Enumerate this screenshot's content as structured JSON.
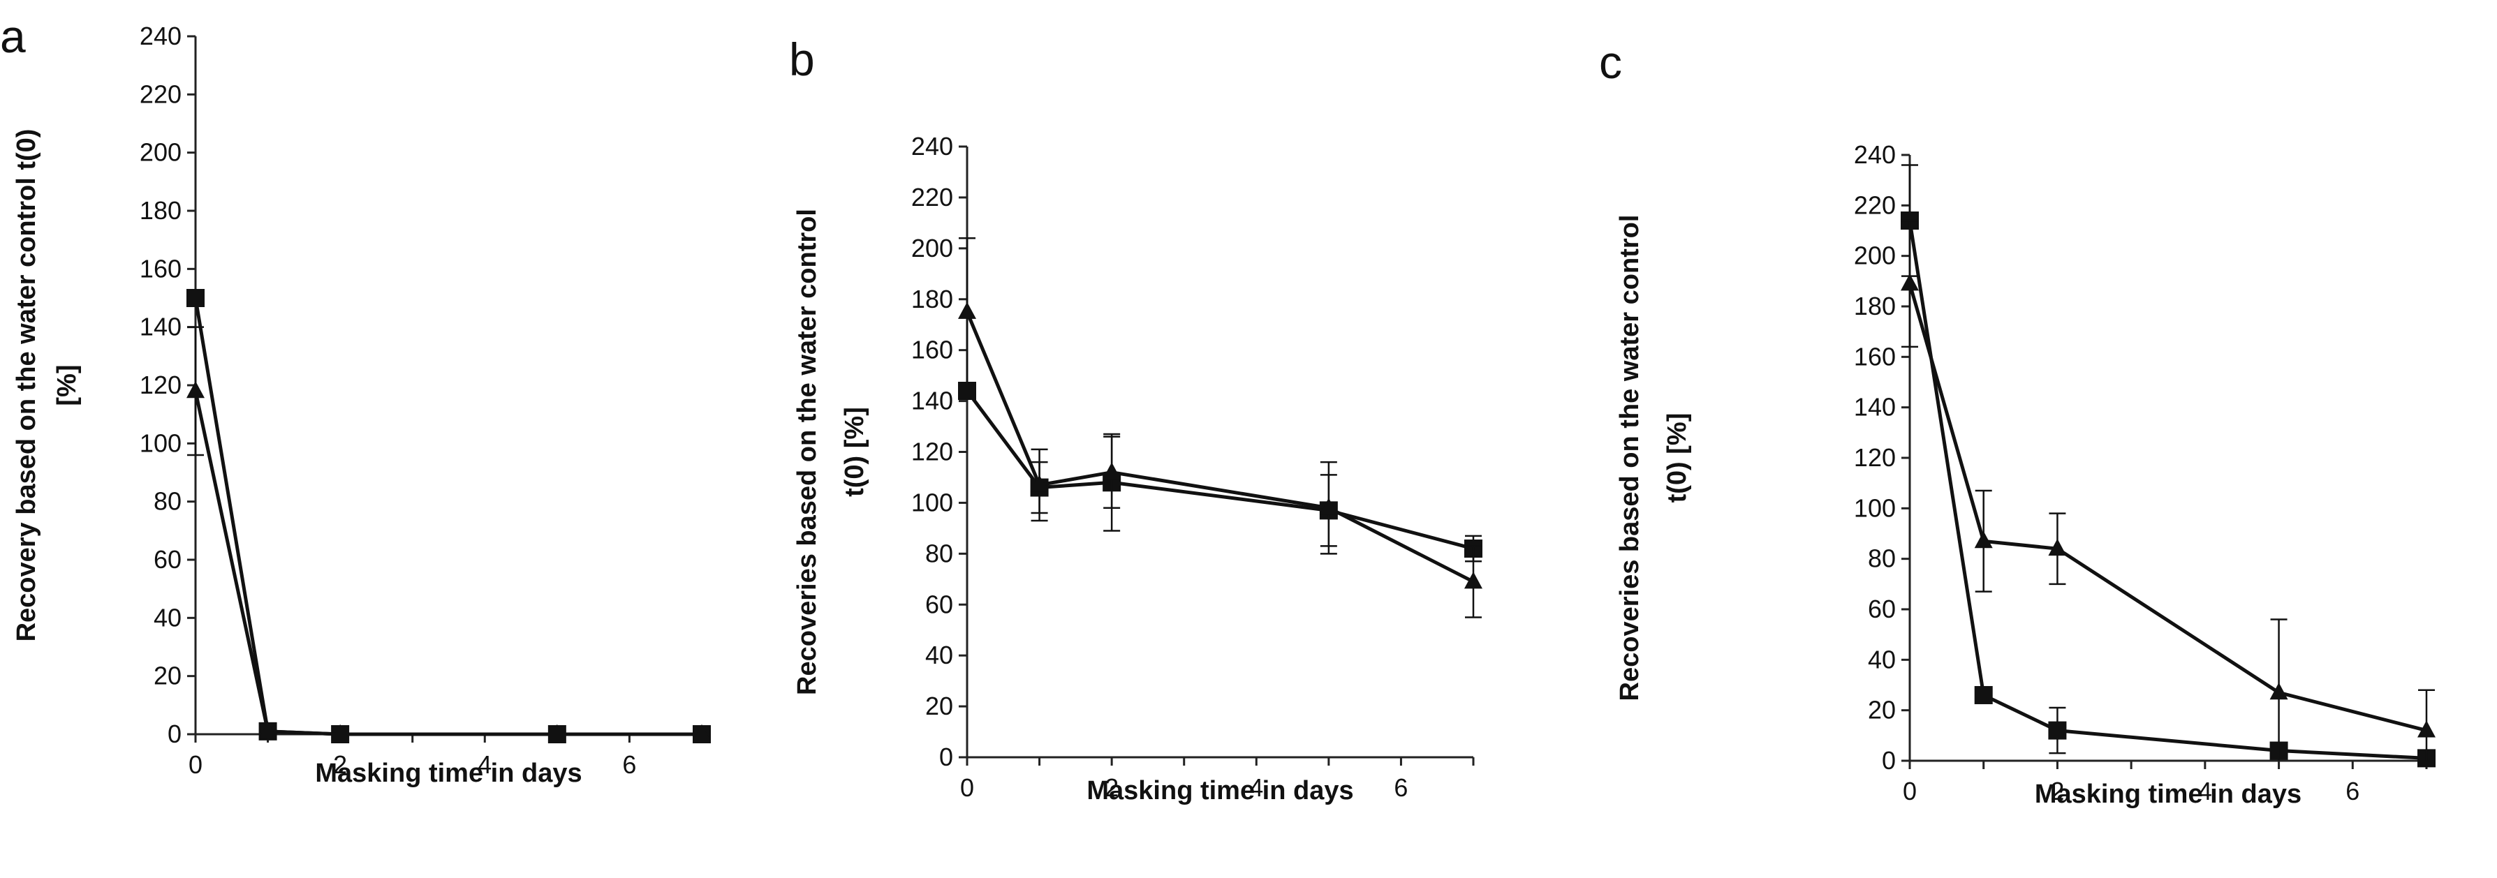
{
  "chart_data": [
    {
      "type": "line",
      "panel": "a",
      "xlabel": "Masking time in days",
      "ylabel_lines": [
        "Recovery based on the water control t(0)",
        "[%]"
      ],
      "xlim": [
        0,
        7
      ],
      "ylim": [
        0,
        240
      ],
      "xticks": [
        0,
        2,
        4,
        6
      ],
      "yticks": [
        0,
        20,
        40,
        60,
        80,
        100,
        120,
        140,
        160,
        180,
        200,
        220,
        240
      ],
      "x": [
        0,
        1,
        2,
        5,
        7
      ],
      "series": [
        {
          "name": "square",
          "marker": "square",
          "values": [
            150,
            1,
            0,
            0,
            0
          ],
          "errors": [
            0,
            0,
            0,
            0,
            0
          ]
        },
        {
          "name": "triangle",
          "marker": "triangle",
          "values": [
            118,
            1,
            0,
            0,
            0
          ],
          "errors": [
            22,
            0,
            0,
            0,
            0
          ]
        }
      ]
    },
    {
      "type": "line",
      "panel": "b",
      "xlabel": "Masking time in days",
      "ylabel_lines": [
        "Recoveries based on the water control",
        "t(0)  [%]"
      ],
      "xlim": [
        0,
        7
      ],
      "ylim": [
        0,
        240
      ],
      "xticks": [
        0,
        2,
        4,
        6
      ],
      "yticks": [
        0,
        20,
        40,
        60,
        80,
        100,
        120,
        140,
        160,
        180,
        200,
        220,
        240
      ],
      "x": [
        0,
        1,
        2,
        5,
        7
      ],
      "series": [
        {
          "name": "square",
          "marker": "square",
          "values": [
            144,
            106,
            108,
            97,
            82
          ],
          "errors": [
            0,
            10,
            19,
            14,
            5
          ]
        },
        {
          "name": "triangle",
          "marker": "triangle",
          "values": [
            175,
            107,
            112,
            98,
            69
          ],
          "errors": [
            29,
            14,
            14,
            18,
            14
          ]
        }
      ]
    },
    {
      "type": "line",
      "panel": "c",
      "xlabel": "Masking time in days",
      "ylabel_lines": [
        "Recoveries based on the water control",
        "t(0) [%]"
      ],
      "xlim": [
        0,
        7
      ],
      "ylim": [
        0,
        240
      ],
      "xticks": [
        0,
        2,
        4,
        6
      ],
      "yticks": [
        0,
        20,
        40,
        60,
        80,
        100,
        120,
        140,
        160,
        180,
        200,
        220,
        240
      ],
      "x": [
        0,
        1,
        2,
        5,
        7
      ],
      "series": [
        {
          "name": "square",
          "marker": "square",
          "values": [
            214,
            26,
            12,
            4,
            1
          ],
          "errors": [
            22,
            0,
            9,
            0,
            0
          ]
        },
        {
          "name": "triangle",
          "marker": "triangle",
          "values": [
            189,
            87,
            84,
            27,
            12
          ],
          "errors": [
            25,
            20,
            14,
            29,
            16
          ]
        }
      ]
    }
  ]
}
